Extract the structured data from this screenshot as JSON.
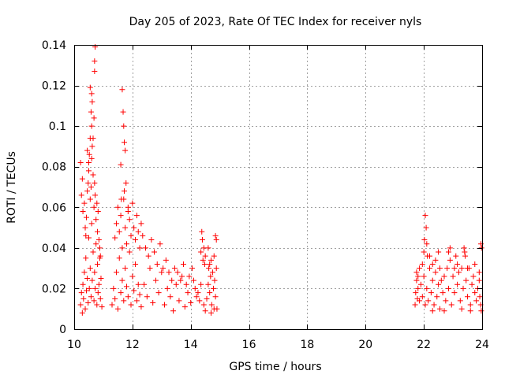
{
  "chart_data": {
    "type": "scatter",
    "title": "Day 205 of 2023, Rate Of TEC Index for receiver nyls",
    "xlabel": "GPS time / hours",
    "ylabel": "ROTI / TECUs",
    "xlim": [
      10,
      24
    ],
    "ylim": [
      0,
      0.14
    ],
    "x_ticks": [
      "10",
      "12",
      "14",
      "16",
      "18",
      "20",
      "22",
      "24"
    ],
    "y_ticks": [
      "0",
      "0.02",
      "0.04",
      "0.06",
      "0.08",
      "0.1",
      "0.12",
      "0.14"
    ],
    "grid": true,
    "marker": "plus",
    "series": [
      {
        "color": "#ff0000",
        "points": [
          [
            10.22,
            0.012
          ],
          [
            10.25,
            0.018
          ],
          [
            10.28,
            0.008
          ],
          [
            10.3,
            0.022
          ],
          [
            10.32,
            0.015
          ],
          [
            10.35,
            0.028
          ],
          [
            10.38,
            0.01
          ],
          [
            10.4,
            0.035
          ],
          [
            10.42,
            0.019
          ],
          [
            10.45,
            0.025
          ],
          [
            10.48,
            0.013
          ],
          [
            10.5,
            0.045
          ],
          [
            10.52,
            0.02
          ],
          [
            10.55,
            0.03
          ],
          [
            10.58,
            0.016
          ],
          [
            10.6,
            0.052
          ],
          [
            10.62,
            0.024
          ],
          [
            10.65,
            0.038
          ],
          [
            10.68,
            0.014
          ],
          [
            10.7,
            0.028
          ],
          [
            10.72,
            0.02
          ],
          [
            10.75,
            0.042
          ],
          [
            10.78,
            0.012
          ],
          [
            10.8,
            0.032
          ],
          [
            10.82,
            0.018
          ],
          [
            10.85,
            0.022
          ],
          [
            10.88,
            0.035
          ],
          [
            10.9,
            0.015
          ],
          [
            10.92,
            0.025
          ],
          [
            10.95,
            0.011
          ],
          [
            10.22,
            0.082
          ],
          [
            10.25,
            0.066
          ],
          [
            10.28,
            0.074
          ],
          [
            10.3,
            0.058
          ],
          [
            10.35,
            0.062
          ],
          [
            10.38,
            0.05
          ],
          [
            10.4,
            0.046
          ],
          [
            10.42,
            0.055
          ],
          [
            10.45,
            0.068
          ],
          [
            10.48,
            0.072
          ],
          [
            10.5,
            0.078
          ],
          [
            10.52,
            0.086
          ],
          [
            10.55,
            0.064
          ],
          [
            10.58,
            0.07
          ],
          [
            10.6,
            0.084
          ],
          [
            10.62,
            0.09
          ],
          [
            10.65,
            0.076
          ],
          [
            10.68,
            0.06
          ],
          [
            10.7,
            0.072
          ],
          [
            10.72,
            0.066
          ],
          [
            10.75,
            0.054
          ],
          [
            10.78,
            0.062
          ],
          [
            10.8,
            0.048
          ],
          [
            10.82,
            0.058
          ],
          [
            10.85,
            0.044
          ],
          [
            10.88,
            0.04
          ],
          [
            10.9,
            0.036
          ],
          [
            10.55,
            0.094
          ],
          [
            10.58,
            0.107
          ],
          [
            10.6,
            0.116
          ],
          [
            10.55,
            0.119
          ],
          [
            10.62,
            0.112
          ],
          [
            10.68,
            0.104
          ],
          [
            10.7,
            0.132
          ],
          [
            10.72,
            0.139
          ],
          [
            10.7,
            0.127
          ],
          [
            10.6,
            0.1
          ],
          [
            10.65,
            0.094
          ],
          [
            10.5,
            0.082
          ],
          [
            10.45,
            0.088
          ],
          [
            11.3,
            0.012
          ],
          [
            11.35,
            0.02
          ],
          [
            11.4,
            0.015
          ],
          [
            11.45,
            0.028
          ],
          [
            11.5,
            0.01
          ],
          [
            11.55,
            0.035
          ],
          [
            11.6,
            0.018
          ],
          [
            11.65,
            0.024
          ],
          [
            11.7,
            0.014
          ],
          [
            11.75,
            0.03
          ],
          [
            11.8,
            0.021
          ],
          [
            11.85,
            0.016
          ],
          [
            11.9,
            0.038
          ],
          [
            11.95,
            0.012
          ],
          [
            12.0,
            0.026
          ],
          [
            12.05,
            0.019
          ],
          [
            12.1,
            0.032
          ],
          [
            12.15,
            0.014
          ],
          [
            12.2,
            0.022
          ],
          [
            12.25,
            0.017
          ],
          [
            11.4,
            0.045
          ],
          [
            11.45,
            0.052
          ],
          [
            11.5,
            0.06
          ],
          [
            11.55,
            0.048
          ],
          [
            11.6,
            0.056
          ],
          [
            11.65,
            0.04
          ],
          [
            11.7,
            0.064
          ],
          [
            11.75,
            0.05
          ],
          [
            11.8,
            0.042
          ],
          [
            11.85,
            0.058
          ],
          [
            11.9,
            0.054
          ],
          [
            11.95,
            0.046
          ],
          [
            12.0,
            0.062
          ],
          [
            12.05,
            0.05
          ],
          [
            12.1,
            0.044
          ],
          [
            12.15,
            0.056
          ],
          [
            12.2,
            0.048
          ],
          [
            12.25,
            0.04
          ],
          [
            12.3,
            0.052
          ],
          [
            12.35,
            0.046
          ],
          [
            11.65,
            0.118
          ],
          [
            11.68,
            0.107
          ],
          [
            11.7,
            0.1
          ],
          [
            11.72,
            0.092
          ],
          [
            11.75,
            0.088
          ],
          [
            11.78,
            0.072
          ],
          [
            11.72,
            0.068
          ],
          [
            11.6,
            0.081
          ],
          [
            11.62,
            0.064
          ],
          [
            11.85,
            0.06
          ],
          [
            12.3,
            0.011
          ],
          [
            12.4,
            0.022
          ],
          [
            12.5,
            0.016
          ],
          [
            12.6,
            0.03
          ],
          [
            12.7,
            0.013
          ],
          [
            12.8,
            0.024
          ],
          [
            12.9,
            0.018
          ],
          [
            13.0,
            0.028
          ],
          [
            13.1,
            0.012
          ],
          [
            13.2,
            0.02
          ],
          [
            12.45,
            0.04
          ],
          [
            12.55,
            0.036
          ],
          [
            12.65,
            0.044
          ],
          [
            12.75,
            0.038
          ],
          [
            12.85,
            0.032
          ],
          [
            12.95,
            0.042
          ],
          [
            13.05,
            0.03
          ],
          [
            13.15,
            0.034
          ],
          [
            13.25,
            0.028
          ],
          [
            13.35,
            0.024
          ],
          [
            13.3,
            0.016
          ],
          [
            13.4,
            0.009
          ],
          [
            13.5,
            0.022
          ],
          [
            13.6,
            0.014
          ],
          [
            13.7,
            0.026
          ],
          [
            13.8,
            0.011
          ],
          [
            13.9,
            0.018
          ],
          [
            14.0,
            0.013
          ],
          [
            14.1,
            0.024
          ],
          [
            14.2,
            0.016
          ],
          [
            13.45,
            0.03
          ],
          [
            13.55,
            0.028
          ],
          [
            13.65,
            0.024
          ],
          [
            13.75,
            0.032
          ],
          [
            13.85,
            0.022
          ],
          [
            13.95,
            0.026
          ],
          [
            14.05,
            0.03
          ],
          [
            14.15,
            0.02
          ],
          [
            14.25,
            0.018
          ],
          [
            14.3,
            0.014
          ],
          [
            14.35,
            0.038
          ],
          [
            14.4,
            0.044
          ],
          [
            14.45,
            0.04
          ],
          [
            14.5,
            0.036
          ],
          [
            14.38,
            0.048
          ],
          [
            14.42,
            0.034
          ],
          [
            14.48,
            0.032
          ],
          [
            14.35,
            0.022
          ],
          [
            14.45,
            0.012
          ],
          [
            14.5,
            0.009
          ],
          [
            14.55,
            0.015
          ],
          [
            14.6,
            0.022
          ],
          [
            14.62,
            0.03
          ],
          [
            14.65,
            0.018
          ],
          [
            14.68,
            0.026
          ],
          [
            14.7,
            0.034
          ],
          [
            14.72,
            0.012
          ],
          [
            14.75,
            0.028
          ],
          [
            14.78,
            0.02
          ],
          [
            14.8,
            0.036
          ],
          [
            14.82,
            0.024
          ],
          [
            14.85,
            0.016
          ],
          [
            14.88,
            0.03
          ],
          [
            14.9,
            0.01
          ],
          [
            14.85,
            0.046
          ],
          [
            14.88,
            0.044
          ],
          [
            14.6,
            0.04
          ],
          [
            14.7,
            0.008
          ],
          [
            14.8,
            0.01
          ],
          [
            14.65,
            0.032
          ],
          [
            21.7,
            0.012
          ],
          [
            21.72,
            0.018
          ],
          [
            21.75,
            0.024
          ],
          [
            21.78,
            0.015
          ],
          [
            21.8,
            0.02
          ],
          [
            21.85,
            0.014
          ],
          [
            21.9,
            0.022
          ],
          [
            21.95,
            0.016
          ],
          [
            22.0,
            0.026
          ],
          [
            22.05,
            0.012
          ],
          [
            21.75,
            0.028
          ],
          [
            21.8,
            0.026
          ],
          [
            21.85,
            0.03
          ],
          [
            21.95,
            0.032
          ],
          [
            22.0,
            0.038
          ],
          [
            22.02,
            0.044
          ],
          [
            22.05,
            0.056
          ],
          [
            22.08,
            0.05
          ],
          [
            22.1,
            0.042
          ],
          [
            22.12,
            0.036
          ],
          [
            22.1,
            0.02
          ],
          [
            22.15,
            0.014
          ],
          [
            22.2,
            0.03
          ],
          [
            22.25,
            0.018
          ],
          [
            22.3,
            0.024
          ],
          [
            22.35,
            0.012
          ],
          [
            22.4,
            0.028
          ],
          [
            22.45,
            0.016
          ],
          [
            22.5,
            0.022
          ],
          [
            22.55,
            0.01
          ],
          [
            22.2,
            0.036
          ],
          [
            22.3,
            0.032
          ],
          [
            22.4,
            0.034
          ],
          [
            22.5,
            0.038
          ],
          [
            22.55,
            0.03
          ],
          [
            22.6,
            0.024
          ],
          [
            22.65,
            0.018
          ],
          [
            22.7,
            0.026
          ],
          [
            22.75,
            0.014
          ],
          [
            22.8,
            0.03
          ],
          [
            22.85,
            0.02
          ],
          [
            22.9,
            0.034
          ],
          [
            22.95,
            0.012
          ],
          [
            23.0,
            0.026
          ],
          [
            23.05,
            0.018
          ],
          [
            23.1,
            0.036
          ],
          [
            23.15,
            0.022
          ],
          [
            23.2,
            0.028
          ],
          [
            23.25,
            0.014
          ],
          [
            23.3,
            0.03
          ],
          [
            22.85,
            0.038
          ],
          [
            22.9,
            0.04
          ],
          [
            23.05,
            0.03
          ],
          [
            23.15,
            0.032
          ],
          [
            23.35,
            0.02
          ],
          [
            23.4,
            0.038
          ],
          [
            23.45,
            0.024
          ],
          [
            23.5,
            0.016
          ],
          [
            23.55,
            0.03
          ],
          [
            23.6,
            0.012
          ],
          [
            23.38,
            0.04
          ],
          [
            23.42,
            0.036
          ],
          [
            23.5,
            0.03
          ],
          [
            23.65,
            0.022
          ],
          [
            23.7,
            0.026
          ],
          [
            23.75,
            0.018
          ],
          [
            23.8,
            0.014
          ],
          [
            23.85,
            0.02
          ],
          [
            23.9,
            0.024
          ],
          [
            23.95,
            0.012
          ],
          [
            23.96,
            0.042
          ],
          [
            23.98,
            0.04
          ],
          [
            23.75,
            0.032
          ],
          [
            23.9,
            0.028
          ],
          [
            23.97,
            0.009
          ],
          [
            23.92,
            0.016
          ],
          [
            23.6,
            0.009
          ],
          [
            23.3,
            0.01
          ],
          [
            22.7,
            0.009
          ],
          [
            22.3,
            0.009
          ]
        ]
      }
    ]
  }
}
